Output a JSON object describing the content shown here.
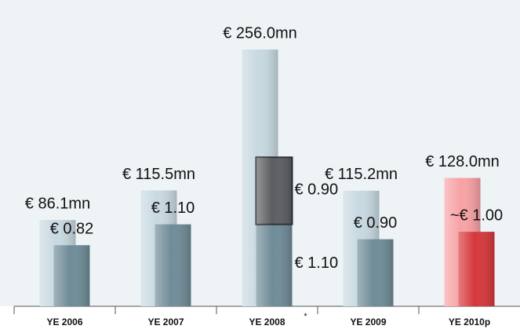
{
  "chart_data": {
    "type": "bar",
    "categories": [
      "YE 2006",
      "YE 2007",
      "YE 2008",
      "YE 2009",
      "YE 2010p"
    ],
    "annotation": "*",
    "ylim": [
      0,
      260
    ],
    "y2lim": [
      0,
      3.5
    ],
    "series": [
      {
        "values": [
          86.1,
          115.5,
          256.0,
          115.2,
          128.0
        ],
        "value_labels": [
          "€ 86.1mn",
          "€ 115.5mn",
          "€ 256.0mn",
          "€ 115.2mn",
          "€ 128.0mn"
        ],
        "colors": [
          "#c8d9e1",
          "#c8d9e1",
          "#c8d9e1",
          "#c8d9e1",
          "#f8a2a5"
        ]
      },
      {
        "axis": "y2",
        "values": [
          0.82,
          1.1,
          1.1,
          0.9,
          1.0
        ],
        "value_labels": [
          "€ 0.82",
          "€ 1.10",
          "€ 1.10",
          "€ 0.90",
          "~€ 1.00"
        ],
        "colors": [
          "#6f8c98",
          "#6f8c98",
          "#6f8c98",
          "#6f8c98",
          "#d6373b"
        ]
      },
      {
        "axis": "y2",
        "stacked": true,
        "values": [
          null,
          null,
          0.9,
          null,
          null
        ],
        "value_labels": [
          null,
          null,
          "€ 0.90",
          null,
          null
        ],
        "colors": [
          null,
          null,
          "#5b5e61",
          null,
          null
        ]
      }
    ]
  }
}
